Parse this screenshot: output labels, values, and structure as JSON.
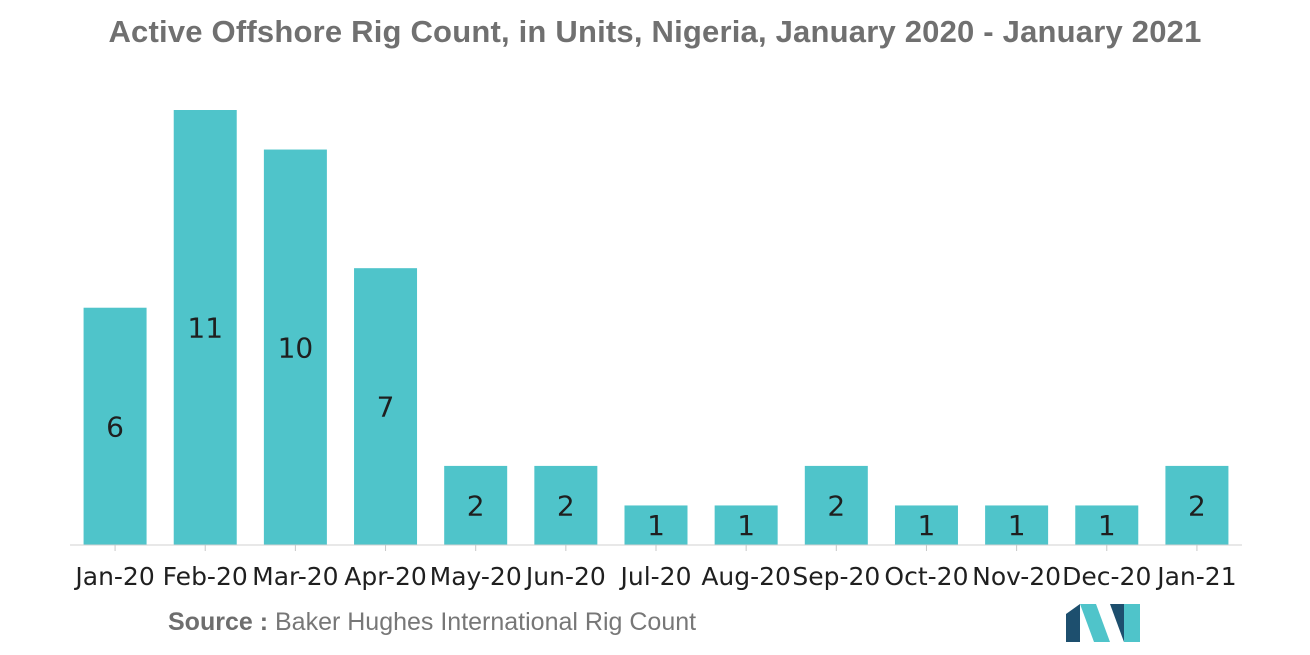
{
  "chart_data": {
    "type": "bar",
    "title": "Active Offshore Rig Count, in Units, Nigeria, January 2020 - January 2021",
    "xlabel": "",
    "ylabel": "",
    "categories": [
      "Jan-20",
      "Feb-20",
      "Mar-20",
      "Apr-20",
      "May-20",
      "Jun-20",
      "Jul-20",
      "Aug-20",
      "Sep-20",
      "Oct-20",
      "Nov-20",
      "Dec-20",
      "Jan-21"
    ],
    "values": [
      6,
      11,
      10,
      7,
      2,
      2,
      1,
      1,
      2,
      1,
      1,
      1,
      2
    ],
    "ylim": [
      0,
      11
    ],
    "grid": false,
    "legend": "none",
    "bar_color": "#4fc4ca",
    "data_labels": "inside"
  },
  "source": {
    "prefix": "Source :",
    "text": "Baker Hughes International Rig Count"
  },
  "colors": {
    "logo_dark": "#1d4f6e",
    "logo_light": "#4fc4ca"
  }
}
